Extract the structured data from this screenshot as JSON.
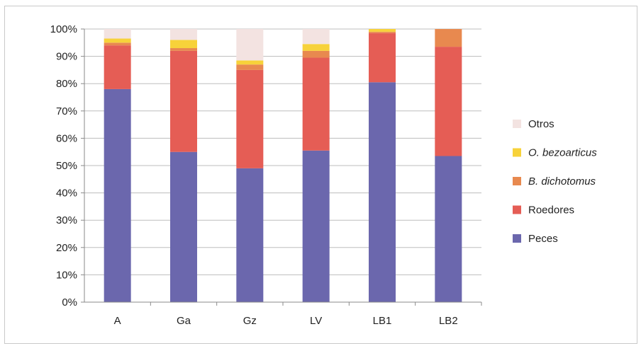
{
  "chart_data": {
    "type": "bar",
    "stacked": true,
    "percent": true,
    "categories": [
      "A",
      "Ga",
      "Gz",
      "LV",
      "LB1",
      "LB2"
    ],
    "series": [
      {
        "name": "Peces",
        "color": "#6b67ad",
        "values": [
          78,
          55,
          49,
          55.5,
          80.5,
          53.5
        ]
      },
      {
        "name": "Roedores",
        "color": "#e55d55",
        "values": [
          16,
          37,
          36,
          34,
          18,
          40
        ]
      },
      {
        "name": "B. dichotomus",
        "color": "#e8894f",
        "values": [
          1,
          1,
          2,
          2.5,
          0.5,
          6.5
        ]
      },
      {
        "name": "O. bezoarticus",
        "color": "#f7d23a",
        "values": [
          1.5,
          3,
          1.5,
          2.5,
          1,
          0
        ]
      },
      {
        "name": "Otros",
        "color": "#f3e3e1",
        "values": [
          3.5,
          4,
          11.5,
          5.5,
          0,
          0
        ]
      }
    ],
    "y_ticks": [
      "0%",
      "10%",
      "20%",
      "30%",
      "40%",
      "50%",
      "60%",
      "70%",
      "80%",
      "90%",
      "100%"
    ],
    "ylim": [
      0,
      100
    ],
    "grid": true,
    "legend": {
      "placement": "right",
      "order": [
        "Otros",
        "O. bezoarticus",
        "B. dichotomus",
        "Roedores",
        "Peces"
      ],
      "italic": [
        "O. bezoarticus",
        "B. dichotomus"
      ]
    },
    "title": "",
    "xlabel": "",
    "ylabel": ""
  }
}
